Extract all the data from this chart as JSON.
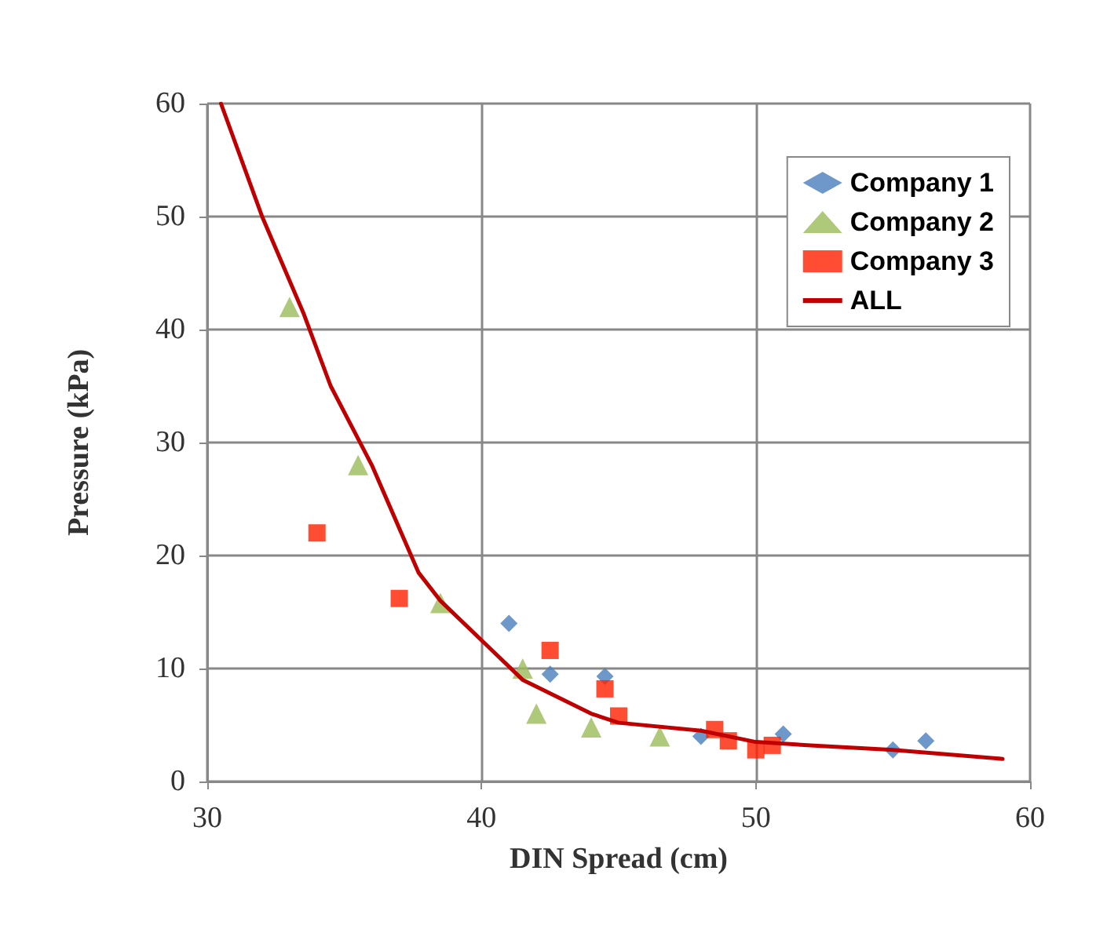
{
  "chart_data": {
    "type": "scatter",
    "xlabel": "DIN Spread (cm)",
    "ylabel": "Pressure (kPa)",
    "xlim": [
      30,
      60
    ],
    "xticks": [
      30,
      40,
      50,
      60
    ],
    "ylim": [
      0,
      60
    ],
    "yticks": [
      0,
      10,
      20,
      30,
      40,
      50,
      60
    ],
    "grid": true,
    "legend": "top right",
    "series": [
      {
        "name": "Company 1",
        "color": "#4a7ebb",
        "marker": "diamond",
        "x": [
          41,
          42.5,
          44.5,
          48,
          51,
          55,
          56.2
        ],
        "values": [
          14,
          9.5,
          9.3,
          4,
          4.2,
          2.8,
          3.6
        ]
      },
      {
        "name": "Company 2",
        "color": "#9bbb59",
        "marker": "triangle",
        "x": [
          33,
          35.5,
          38.5,
          41.5,
          42,
          44,
          46.5
        ],
        "values": [
          42,
          28,
          15.8,
          10,
          6,
          4.8,
          4
        ]
      },
      {
        "name": "Company 3",
        "color": "#ff2000",
        "marker": "square",
        "x": [
          34,
          37,
          42.5,
          44.5,
          45,
          48.5,
          49,
          50,
          50.6
        ],
        "values": [
          22,
          16.2,
          11.6,
          8.2,
          5.8,
          4.6,
          3.6,
          2.8,
          3.2
        ]
      },
      {
        "name": "ALL",
        "type": "line",
        "color": "#c00000",
        "marker": "none",
        "line_style": "solid",
        "x": [
          30.5,
          32,
          33.5,
          34.5,
          36,
          37.7,
          38.5,
          40,
          41.5,
          44,
          45,
          48,
          50,
          52,
          55,
          59
        ],
        "values": [
          60,
          50,
          41.5,
          35,
          28,
          18.5,
          16,
          12.5,
          9,
          6,
          5.2,
          4.5,
          3.5,
          3.2,
          2.8,
          2
        ]
      }
    ]
  }
}
